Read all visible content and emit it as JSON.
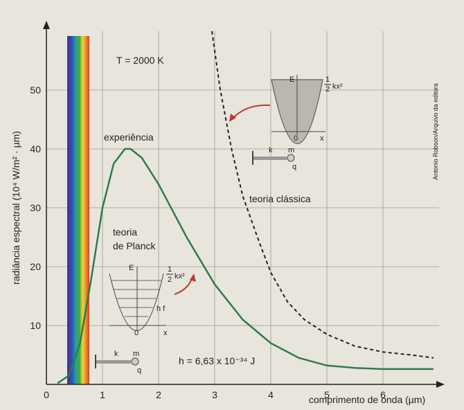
{
  "chart_data": {
    "type": "line",
    "y_label": "radiância espectral (10⁴ W/m² · µm)",
    "x_label": "comprimento de onda (µm)",
    "credit": "Antonio Robson/Arquivo da editora",
    "xlim": [
      0,
      7
    ],
    "ylim": [
      0,
      60
    ],
    "xticks": [
      0,
      1,
      2,
      3,
      4,
      5,
      6
    ],
    "yticks": [
      10,
      20,
      30,
      40,
      50
    ],
    "grid": true,
    "series": [
      {
        "name": "experiência",
        "color": "#2f7a4a",
        "dash": false,
        "x": [
          0.2,
          0.4,
          0.6,
          0.8,
          1.0,
          1.2,
          1.4,
          1.5,
          1.7,
          2.0,
          2.5,
          3.0,
          3.5,
          4.0,
          4.5,
          5.0,
          5.5,
          6.0,
          6.9
        ],
        "values": [
          0.2,
          1.5,
          7,
          18,
          30,
          37.5,
          40,
          40,
          38.5,
          34,
          25,
          17,
          11,
          7,
          4.5,
          3.2,
          2.8,
          2.6,
          2.6
        ]
      },
      {
        "name": "teoria clássica",
        "color": "#222222",
        "dash": true,
        "x": [
          2.95,
          3.1,
          3.3,
          3.5,
          3.8,
          4.0,
          4.3,
          4.6,
          5.0,
          5.5,
          6.0,
          6.5,
          6.9
        ],
        "values": [
          60,
          50,
          40,
          32,
          24,
          19,
          14,
          11,
          8.5,
          6.5,
          5.5,
          5,
          4.5
        ]
      }
    ],
    "annotations": {
      "temperature": "T = 2000 K",
      "planck_1": "teoria",
      "planck_2": "de Planck",
      "constant": "h = 6,63 x 10⁻³⁴ J"
    },
    "insets": {
      "energy": "E",
      "half_num": "1",
      "half_den": "2",
      "kx2": "kx²",
      "zero": "0",
      "x": "x",
      "k": "k",
      "m": "m",
      "q": "q",
      "hf": "h f"
    }
  }
}
